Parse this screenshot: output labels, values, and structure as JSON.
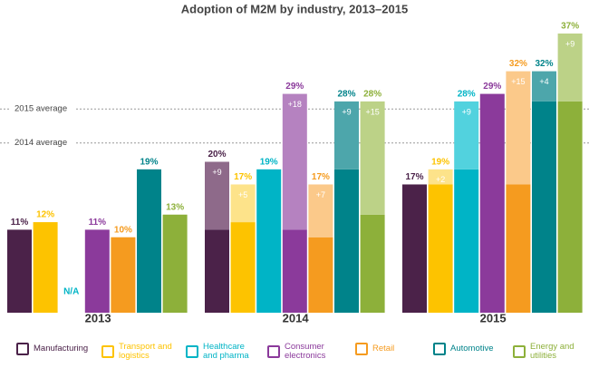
{
  "chart_data": {
    "type": "bar",
    "title": "Adoption of M2M by industry, 2013–2015",
    "categories": [
      "2013",
      "2014",
      "2015"
    ],
    "ylim": [
      0,
      40
    ],
    "averages": [
      {
        "label": "2015 average",
        "value": 27
      },
      {
        "label": "2014 average",
        "value": 22.5
      }
    ],
    "series": [
      {
        "name": "Manufacturing",
        "color": "#4b2249",
        "increase_color": "#8e6a8a",
        "values": [
          11,
          20,
          17
        ],
        "value_labels": [
          "11%",
          "20%",
          "17%"
        ],
        "increases": [
          null,
          9,
          null
        ],
        "increase_labels": [
          null,
          "+9",
          null
        ]
      },
      {
        "name": "Transport and logistics",
        "color": "#fdc300",
        "increase_color": "#fde38a",
        "values": [
          12,
          17,
          19
        ],
        "value_labels": [
          "12%",
          "17%",
          "19%"
        ],
        "increases": [
          null,
          5,
          2
        ],
        "increase_labels": [
          null,
          "+5",
          "+2"
        ]
      },
      {
        "name": "Healthcare and pharma",
        "color": "#00b4c6",
        "increase_color": "#52d2de",
        "values": [
          null,
          19,
          28
        ],
        "value_labels": [
          "N/A",
          "19%",
          "28%"
        ],
        "increases": [
          null,
          null,
          9
        ],
        "increase_labels": [
          null,
          null,
          "+9"
        ]
      },
      {
        "name": "Consumer electronics",
        "color": "#8b3a9b",
        "increase_color": "#b582c0",
        "values": [
          11,
          29,
          29
        ],
        "value_labels": [
          "11%",
          "29%",
          "29%"
        ],
        "increases": [
          null,
          18,
          null
        ],
        "increase_labels": [
          null,
          "+18",
          null
        ]
      },
      {
        "name": "Retail",
        "color": "#f59b1f",
        "increase_color": "#fbc98a",
        "values": [
          10,
          17,
          32
        ],
        "value_labels": [
          "10%",
          "17%",
          "32%"
        ],
        "increases": [
          null,
          7,
          15
        ],
        "increase_labels": [
          null,
          "+7",
          "+15"
        ]
      },
      {
        "name": "Automotive",
        "color": "#00838a",
        "increase_color": "#4da6ab",
        "values": [
          19,
          28,
          32
        ],
        "value_labels": [
          "19%",
          "28%",
          "32%"
        ],
        "increases": [
          null,
          9,
          4
        ],
        "increase_labels": [
          null,
          "+9",
          "+4"
        ]
      },
      {
        "name": "Energy and utilities",
        "color": "#8db03a",
        "increase_color": "#bcd287",
        "values": [
          13,
          28,
          37
        ],
        "value_labels": [
          "13%",
          "28%",
          "37%"
        ],
        "increases": [
          null,
          15,
          9
        ],
        "increase_labels": [
          null,
          "+15",
          "+9"
        ]
      }
    ]
  }
}
